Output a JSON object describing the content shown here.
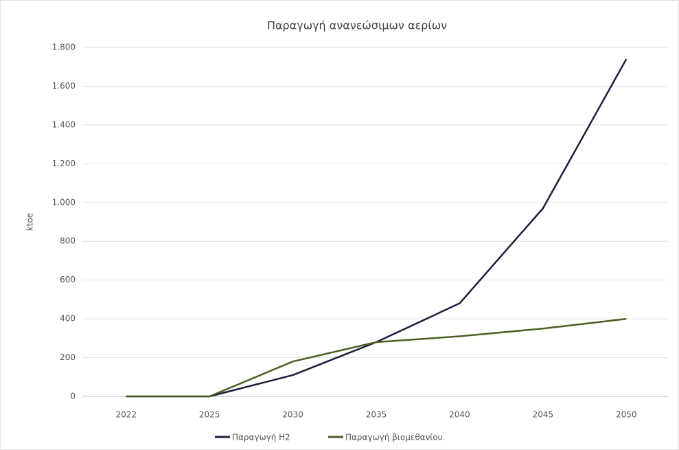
{
  "chart_data": {
    "type": "line",
    "title": "Παραγωγή ανανεώσιμων αερίων",
    "y_label": "ktoe",
    "categories": [
      "2022",
      "2025",
      "2030",
      "2035",
      "2040",
      "2045",
      "2050"
    ],
    "series": [
      {
        "name": "Παραγωγή H2",
        "color": "#1d1d3b",
        "values": [
          0,
          0,
          110,
          280,
          480,
          970,
          1740
        ]
      },
      {
        "name": "Παραγωγή βιομεθανίου",
        "color": "#4b5f24",
        "values": [
          0,
          0,
          180,
          280,
          310,
          350,
          400
        ]
      }
    ],
    "ylim": [
      0,
      1800
    ],
    "yticks": [
      0,
      200,
      400,
      600,
      800,
      {
        "value": 1000,
        "label": "1.000"
      },
      {
        "value": 1200,
        "label": "1.200"
      },
      {
        "value": 1400,
        "label": "1.400"
      },
      {
        "value": 1600,
        "label": "1.600"
      },
      {
        "value": 1800,
        "label": "1.800"
      }
    ],
    "grid": true,
    "legend": "bottom"
  }
}
